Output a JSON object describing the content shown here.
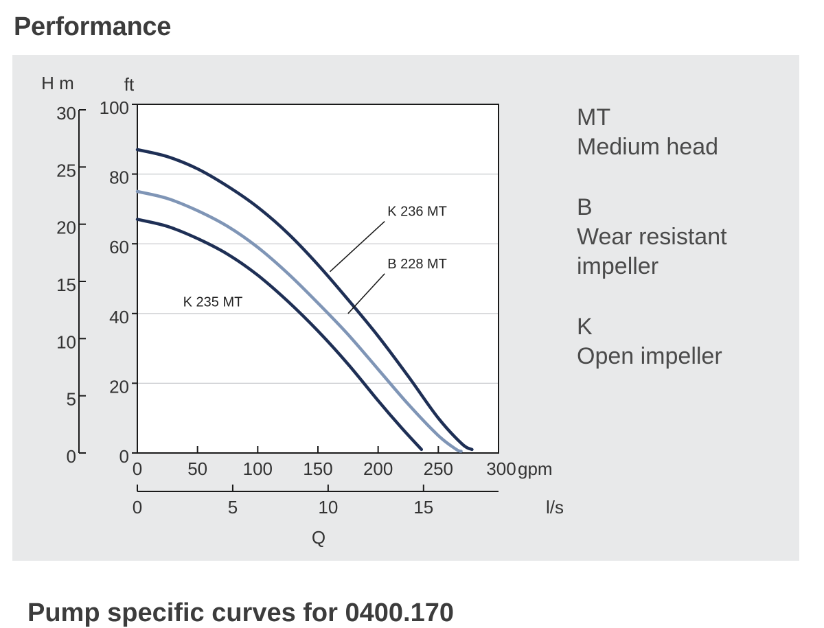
{
  "page": {
    "title": "Performance",
    "next_heading": "Pump specific curves for 0400.170"
  },
  "legend": [
    {
      "code": "MT",
      "lines": [
        "Medium head"
      ]
    },
    {
      "code": "B",
      "lines": [
        "Wear resistant",
        "impeller"
      ]
    },
    {
      "code": "K",
      "lines": [
        "Open impeller"
      ]
    }
  ],
  "colors": {
    "panel": "#e8e9ea",
    "dark_curve": "#1e2f55",
    "light_curve": "#7f95b6",
    "grid": "#c6c8cb",
    "axis": "#1a1a1a"
  },
  "chart_data": {
    "type": "line",
    "title": "Performance",
    "xlabel": "Q",
    "x_unit_primary": "gpm",
    "x_unit_secondary": "l/s",
    "xlim": [
      0,
      300
    ],
    "xticks": [
      "0",
      "50",
      "100",
      "150",
      "200",
      "250",
      "300"
    ],
    "x2lim": [
      0,
      18.93
    ],
    "x2ticks": [
      "0",
      "5",
      "10",
      "15"
    ],
    "ylabel_m": "H  m",
    "ylabel_ft": "ft",
    "ylim_ft": [
      0,
      100
    ],
    "yticks_ft": [
      "0",
      "20",
      "40",
      "60",
      "80",
      "100"
    ],
    "ylim_m": [
      0,
      30.48
    ],
    "yticks_m": [
      "0",
      "5",
      "10",
      "15",
      "20",
      "25",
      "30"
    ],
    "grid": true,
    "series": [
      {
        "name": "K 236 MT",
        "style": "dark",
        "x": [
          0,
          25,
          50,
          75,
          100,
          125,
          150,
          175,
          200,
          225,
          250,
          270,
          278
        ],
        "y": [
          87,
          85,
          81.5,
          76.5,
          70.5,
          63,
          54,
          44,
          33.5,
          22,
          10,
          2.5,
          1
        ]
      },
      {
        "name": "B 228 MT",
        "style": "light",
        "x": [
          0,
          25,
          50,
          75,
          100,
          125,
          150,
          175,
          200,
          225,
          250,
          265,
          269
        ],
        "y": [
          75,
          73,
          69.5,
          65,
          59,
          51.5,
          43,
          34,
          24,
          14,
          5,
          1,
          0.5
        ]
      },
      {
        "name": "K 235 MT",
        "style": "dark",
        "x": [
          0,
          25,
          50,
          75,
          100,
          125,
          150,
          175,
          200,
          220,
          236
        ],
        "y": [
          67,
          65,
          61.5,
          57,
          51,
          43.5,
          35,
          25.5,
          15,
          7,
          1
        ]
      }
    ],
    "annotations": [
      {
        "text": "K 236 MT",
        "label_at": [
          210,
          68
        ],
        "points_to": [
          160,
          52
        ]
      },
      {
        "text": "B 228 MT",
        "label_at": [
          210,
          53
        ],
        "points_to": [
          175,
          40
        ]
      },
      {
        "text": "K 235 MT",
        "label_at": [
          38,
          42
        ]
      }
    ]
  }
}
